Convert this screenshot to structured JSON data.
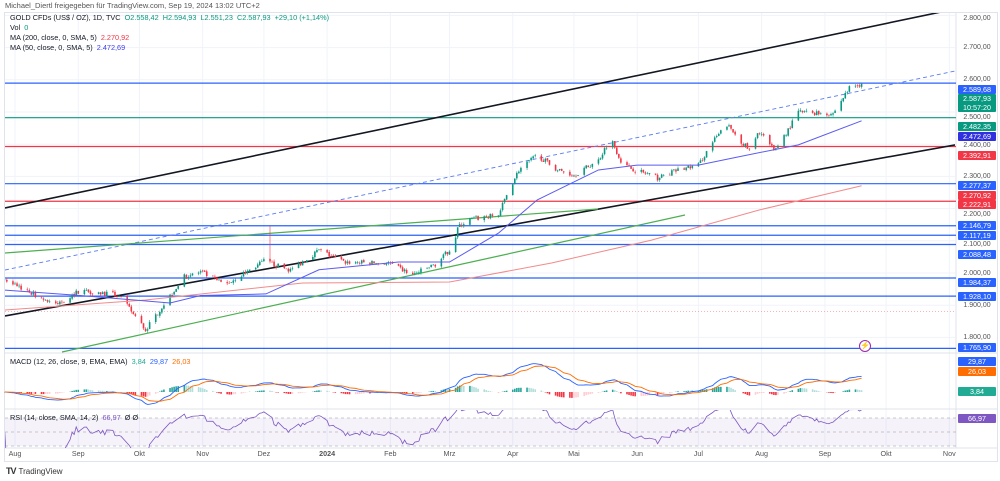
{
  "attribution": "Michael_Diertl freigegeben für TradingView.com, Sep 19, 2024 13:02 UTC+2",
  "legend": {
    "symbol": "GOLD CFDs (US$ / OZ), 1D, TVC",
    "open": "O2.558,42",
    "high": "H2.594,93",
    "low": "L2.551,23",
    "close": "C2.587,93",
    "change": "+29,10 (+1,14%)",
    "vol_label": "Vol",
    "vol_value": "0",
    "ma200_label": "MA (200, close, 0, SMA, 5)",
    "ma200_value": "2.270,92",
    "ma50_label": "MA (50, close, 0, SMA, 5)",
    "ma50_value": "2.472,69",
    "macd_label": "MACD (12, 26, close, 9, EMA, EMA)",
    "macd_hist": "3,84",
    "macd_line": "29,87",
    "macd_signal": "26,03",
    "rsi_label": "RSI (14, close, SMA, 14, 2)",
    "rsi_value": "66,97",
    "rsi_extra": "Ø Ø"
  },
  "colors": {
    "up": "#089981",
    "down": "#f23645",
    "level_blue": "#2962ff",
    "level_red": "#f23645",
    "level_green": "#089981",
    "ma50": "#5b5bf0",
    "ma200": "#f28b8b",
    "macd": "#2962ff",
    "signal": "#ff6d00",
    "rsi": "#7e57c2"
  },
  "price_axis": [
    "2.800,00",
    "2.700,00",
    "2.600,00",
    "2.500,00",
    "2.400,00",
    "2.300,00",
    "2.200,00",
    "2.100,00",
    "2.000,00",
    "1.900,00",
    "1.800,00"
  ],
  "price_ticks": [
    2800,
    2700,
    2600,
    2500,
    2400,
    2300,
    2200,
    2100,
    2000,
    1900,
    1800
  ],
  "levels": [
    {
      "price": 2589.68,
      "label": "2.589,68",
      "color": "#2962ff"
    },
    {
      "price": 2482.35,
      "label": "2.482,35",
      "color": "#089981"
    },
    {
      "price": 2392.91,
      "label": "2.392,91",
      "color": "#f23645"
    },
    {
      "price": 2277.37,
      "label": "2.277,37",
      "color": "#2962ff"
    },
    {
      "price": 2222.91,
      "label": "2.222,91",
      "color": "#f23645"
    },
    {
      "price": 2146.79,
      "label": "2.146,79",
      "color": "#2962ff"
    },
    {
      "price": 2117.19,
      "label": "2.117,19",
      "color": "#2962ff"
    },
    {
      "price": 2088.48,
      "label": "2.088,48",
      "color": "#2962ff"
    },
    {
      "price": 1984.37,
      "label": "1.984,37",
      "color": "#2962ff"
    },
    {
      "price": 1928.1,
      "label": "1.928,10",
      "color": "#2962ff"
    },
    {
      "price": 1765.9,
      "label": "1.765,90",
      "color": "#2962ff"
    }
  ],
  "last_price": {
    "label": "2.587,93",
    "countdown": "10:57:20"
  },
  "ma50_tag": "2.472,69",
  "ma200_tag": "2.270,92",
  "time_axis": [
    {
      "label": "Aug",
      "date": "2023-08-01"
    },
    {
      "label": "Sep",
      "date": "2023-09-01"
    },
    {
      "label": "Okt",
      "date": "2023-10-01"
    },
    {
      "label": "Nov",
      "date": "2023-11-01"
    },
    {
      "label": "Dez",
      "date": "2023-12-01"
    },
    {
      "label": "2024",
      "date": "2024-01-01"
    },
    {
      "label": "Feb",
      "date": "2024-02-01"
    },
    {
      "label": "Mrz",
      "date": "2024-03-01"
    },
    {
      "label": "Apr",
      "date": "2024-04-01"
    },
    {
      "label": "Mai",
      "date": "2024-05-01"
    },
    {
      "label": "Jun",
      "date": "2024-06-01"
    },
    {
      "label": "Jul",
      "date": "2024-07-01"
    },
    {
      "label": "Aug",
      "date": "2024-08-01"
    },
    {
      "label": "Sep",
      "date": "2024-09-01"
    },
    {
      "label": "Okt",
      "date": "2024-10-01"
    },
    {
      "label": "Nov",
      "date": "2024-11-01"
    }
  ],
  "brand": "TradingView",
  "chart_data": {
    "type": "candlestick",
    "title": "GOLD CFDs (US$ / OZ), 1D, TVC",
    "ylim": [
      1750,
      2830
    ],
    "grid": true,
    "close_keypoints": [
      [
        "2023-07-27",
        1980
      ],
      [
        "2023-08-21",
        1900
      ],
      [
        "2023-09-02",
        1947
      ],
      [
        "2023-09-21",
        1930
      ],
      [
        "2023-10-04",
        1823
      ],
      [
        "2023-10-16",
        1930
      ],
      [
        "2023-10-23",
        1988
      ],
      [
        "2023-10-31",
        2003
      ],
      [
        "2023-11-12",
        1963
      ],
      [
        "2023-12-02",
        2040
      ],
      [
        "2023-12-04",
        2030
      ],
      [
        "2023-12-14",
        2009
      ],
      [
        "2023-12-28",
        2071
      ],
      [
        "2024-01-09",
        2034
      ],
      [
        "2024-01-31",
        2030
      ],
      [
        "2024-02-12",
        1994
      ],
      [
        "2024-02-24",
        2030
      ],
      [
        "2024-03-03",
        2087
      ],
      [
        "2024-03-05",
        2140
      ],
      [
        "2024-03-10",
        2165
      ],
      [
        "2024-03-25",
        2180
      ],
      [
        "2024-03-30",
        2258
      ],
      [
        "2024-04-04",
        2320
      ],
      [
        "2024-04-13",
        2366
      ],
      [
        "2024-04-23",
        2320
      ],
      [
        "2024-05-01",
        2304
      ],
      [
        "2024-05-13",
        2350
      ],
      [
        "2024-05-19",
        2420
      ],
      [
        "2024-05-25",
        2335
      ],
      [
        "2024-06-11",
        2295
      ],
      [
        "2024-06-21",
        2320
      ],
      [
        "2024-07-01",
        2335
      ],
      [
        "2024-07-08",
        2407
      ],
      [
        "2024-07-15",
        2460
      ],
      [
        "2024-07-26",
        2380
      ],
      [
        "2024-07-31",
        2440
      ],
      [
        "2024-08-07",
        2380
      ],
      [
        "2024-08-14",
        2444
      ],
      [
        "2024-08-19",
        2500
      ],
      [
        "2024-09-05",
        2495
      ],
      [
        "2024-09-13",
        2575
      ],
      [
        "2024-09-19",
        2587.93
      ]
    ],
    "spike": {
      "date": "2023-12-04",
      "high": 2146
    },
    "ma50": [
      [
        "2023-07-27",
        1947
      ],
      [
        "2023-09-02",
        1930
      ],
      [
        "2023-10-16",
        1907
      ],
      [
        "2023-10-31",
        1930
      ],
      [
        "2023-12-02",
        1935
      ],
      [
        "2023-12-28",
        2010
      ],
      [
        "2024-02-05",
        2034
      ],
      [
        "2024-03-01",
        2034
      ],
      [
        "2024-03-25",
        2124
      ],
      [
        "2024-04-13",
        2227
      ],
      [
        "2024-05-13",
        2320
      ],
      [
        "2024-06-01",
        2335
      ],
      [
        "2024-07-01",
        2335
      ],
      [
        "2024-07-20",
        2360
      ],
      [
        "2024-08-19",
        2398
      ],
      [
        "2024-09-19",
        2472.69
      ]
    ],
    "ma200": [
      [
        "2023-07-27",
        1885
      ],
      [
        "2023-10-04",
        1916
      ],
      [
        "2023-12-20",
        1969
      ],
      [
        "2024-03-01",
        1972
      ],
      [
        "2024-04-20",
        2031
      ],
      [
        "2024-06-08",
        2102
      ],
      [
        "2024-07-31",
        2196
      ],
      [
        "2024-09-19",
        2270.92
      ]
    ]
  }
}
